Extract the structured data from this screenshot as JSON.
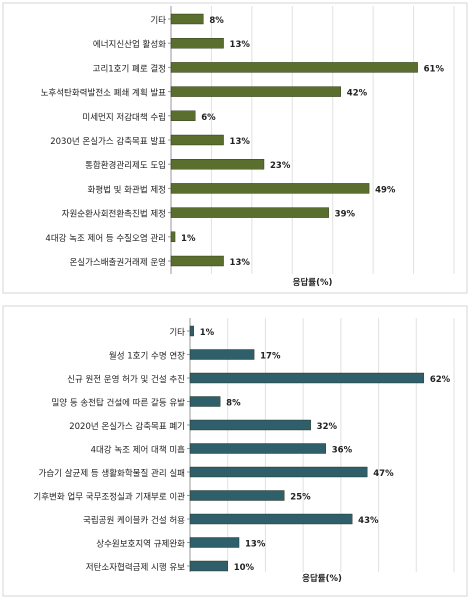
{
  "chart_data": [
    {
      "type": "bar",
      "orientation": "horizontal",
      "categories": [
        "기타",
        "에너지신산업 활성화",
        "고리1호기 폐로 결정",
        "노후석탄화력발전소 폐쇄 계획 발표",
        "미세먼지 저감대책 수립",
        "2030년 온실가스 감축목표 발표",
        "통합환경관리제도 도입",
        "화평법 및 화관법 제정",
        "자원순환사회전환촉진법 제정",
        "4대강 녹조 제어 등 수질오염 관리",
        "온실가스배출권거래제 운영"
      ],
      "values": [
        8,
        13,
        61,
        42,
        6,
        13,
        23,
        49,
        39,
        1,
        13
      ],
      "value_labels": [
        "8%",
        "13%",
        "61%",
        "42%",
        "6%",
        "13%",
        "23%",
        "49%",
        "39%",
        "1%",
        "13%"
      ],
      "xlabel": "응답률(%)",
      "xlim": [
        0,
        70
      ],
      "grid": true,
      "bar_color": "#5a6e2d"
    },
    {
      "type": "bar",
      "orientation": "horizontal",
      "categories": [
        "기타",
        "월성 1호기 수명 연장",
        "신규 원전 운영 허가 및 건설 추진",
        "밀양 등 송전탑 건설에 따른 갈등 유발",
        "2020년 온실가스 감축목표 폐기",
        "4대강 녹조 제어 대책 미흡",
        "가습기 살균제 등 생활화학물질 관리 실패",
        "기후변화 업무 국무조정실과 기재부로 이관",
        "국립공원 케이블카 건설 허용",
        "상수원보호지역 규제완화",
        "저탄소자협력금제 시행 유보"
      ],
      "values": [
        1,
        17,
        62,
        8,
        32,
        36,
        47,
        25,
        43,
        13,
        10
      ],
      "value_labels": [
        "1%",
        "17%",
        "62%",
        "8%",
        "32%",
        "36%",
        "47%",
        "25%",
        "43%",
        "13%",
        "10%"
      ],
      "xlabel": "응답률(%)",
      "xlim": [
        0,
        70
      ],
      "grid": true,
      "bar_color": "#2f5f6b"
    }
  ]
}
